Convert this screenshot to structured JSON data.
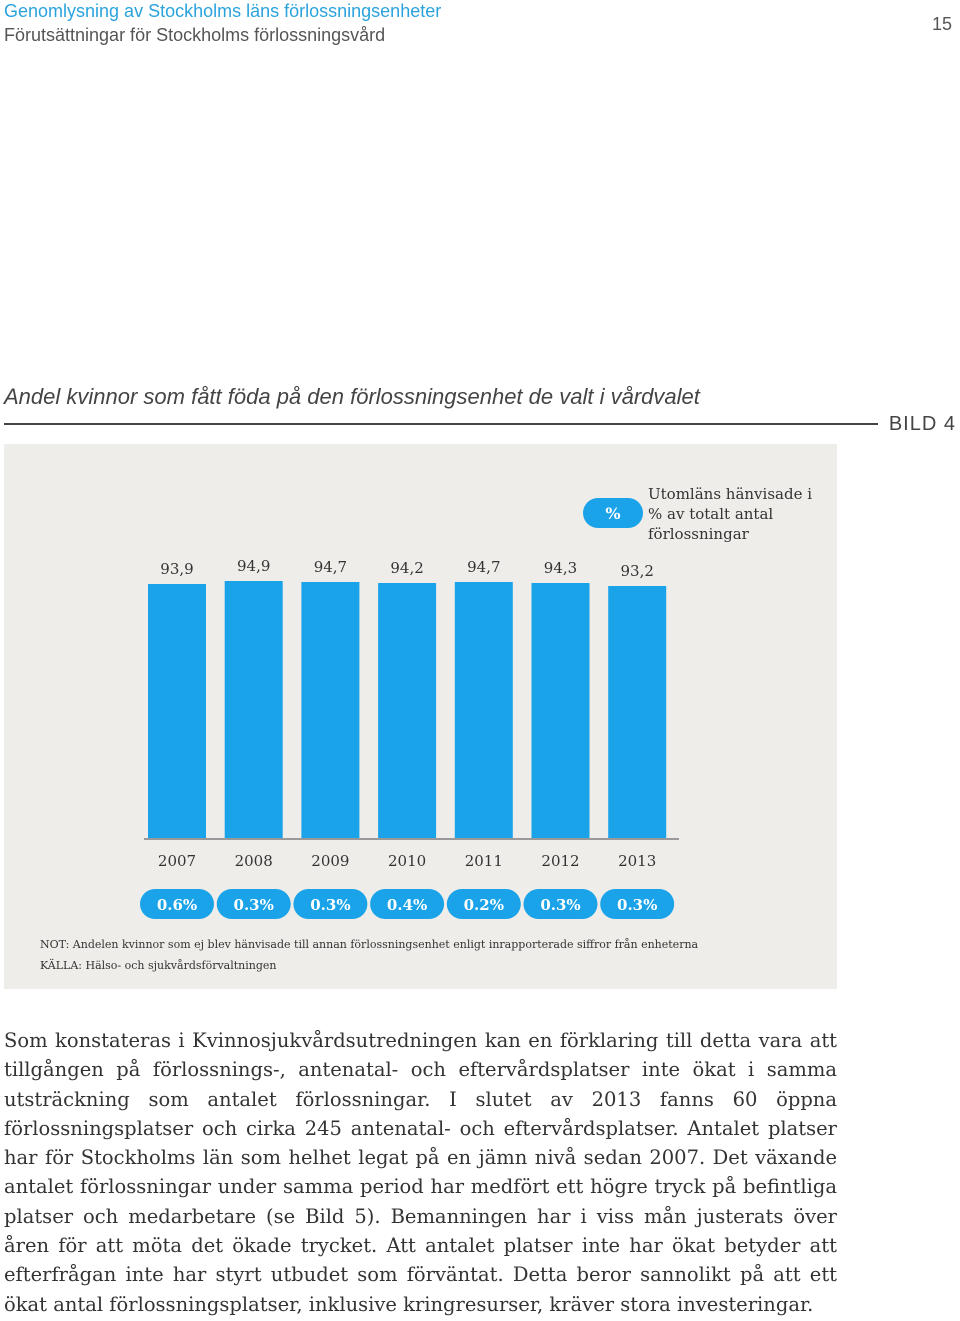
{
  "header": {
    "line1": "Genomlysning av Stockholms läns förlossningsenheter",
    "line2": "Förutsättningar för Stockholms förlossningsvård",
    "page_number": "15"
  },
  "figure": {
    "title": "Andel kvinnor som fått föda på den förlossningsenhet de valt i vårdvalet",
    "label": "BILD 4",
    "badge": "%",
    "legend": "Utomläns hänvisade i % av totalt antal förlossningar",
    "note": "NOT: Andelen kvinnor som ej blev hänvisade till annan förlossningsenhet enligt inrapporterade siffror från enheterna",
    "source": "KÄLLA: Hälso- och sjukvårdsförvaltningen"
  },
  "colors": {
    "bar": "#1aa3e8",
    "accent": "#2aa3dd",
    "panel": "#efedea"
  },
  "chart_data": {
    "type": "bar",
    "categories": [
      "2007",
      "2008",
      "2009",
      "2010",
      "2011",
      "2012",
      "2013"
    ],
    "values": [
      93.9,
      94.9,
      94.7,
      94.2,
      94.7,
      94.3,
      93.2
    ],
    "value_labels": [
      "93,9",
      "94,9",
      "94,7",
      "94,2",
      "94,7",
      "94,3",
      "93,2"
    ],
    "series": [
      {
        "name": "Utomläns hänvisade i % av totalt antal förlossningar",
        "labels": [
          "0.6%",
          "0.3%",
          "0.3%",
          "0.4%",
          "0.2%",
          "0.3%",
          "0.3%"
        ]
      }
    ],
    "title": "Andel kvinnor som fått föda på den förlossningsenhet de valt i vårdvalet",
    "ylim": [
      0,
      100
    ]
  },
  "body_text": "Som konstateras i Kvinnosjukvårdsutredningen kan en förklaring till detta vara att tillgången på förlossnings-, antenatal- och eftervårdsplatser inte ökat i samma utsträckning som antalet förlossningar. I slutet av 2013 fanns 60 öppna förlossningsplatser och cirka 245 antenatal- och eftervårdsplatser. Antalet platser har för Stockholms län som helhet legat på en jämn nivå sedan 2007. Det växande antalet förlossningar under samma period har medfört ett högre tryck på befintliga platser och medarbetare (se Bild 5). Bemanningen har i viss mån justerats över åren för att möta det ökade trycket. Att antalet platser inte har ökat betyder att efterfrågan inte har styrt utbudet som förväntat. Detta beror sannolikt på att ett ökat antal förlossningsplatser, inklusive kringresurser, kräver stora investeringar."
}
